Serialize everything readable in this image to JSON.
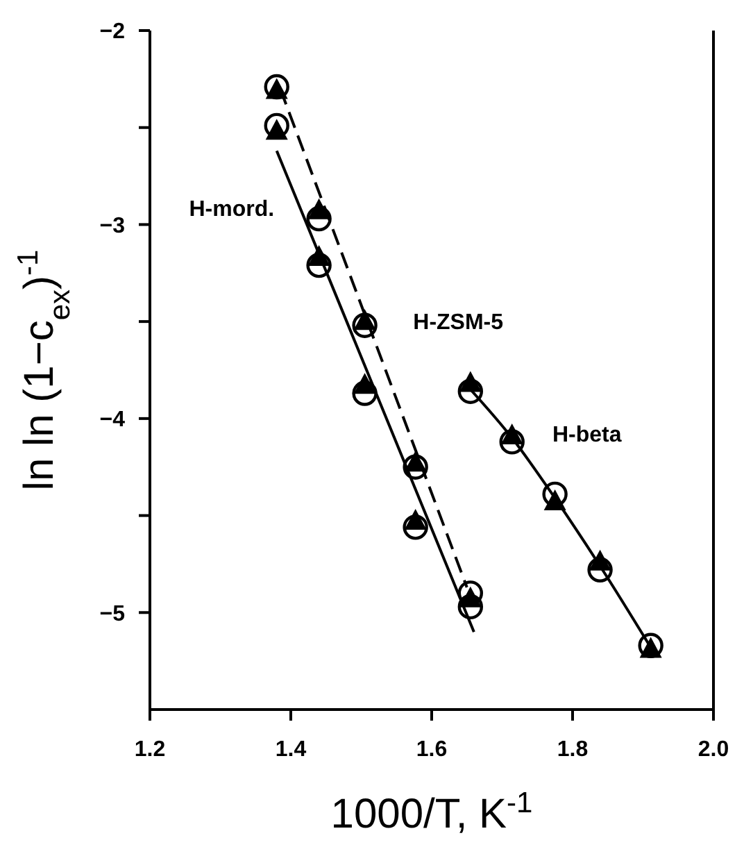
{
  "chart_data": {
    "type": "scatter",
    "xlabel": "1000/T, K$^{-1}$",
    "ylabel": "ln ln (1−c$_{ex}$)$^{-1}$",
    "xlim": [
      1.2,
      2.0
    ],
    "ylim": [
      -5.5,
      -2
    ],
    "xticks": [
      1.2,
      1.4,
      1.6,
      1.8,
      {
        "value": 2.0,
        "label": "2.0"
      }
    ],
    "yticks": [
      {
        "value": -2,
        "label": "−2"
      },
      {
        "value": -2.5,
        "label": null
      },
      {
        "value": -3,
        "label": "−3"
      },
      {
        "value": -3.5,
        "label": null
      },
      {
        "value": -4,
        "label": "−4"
      },
      {
        "value": -4.5,
        "label": null
      },
      {
        "value": -5,
        "label": "−5"
      }
    ],
    "grid": false,
    "legend": false,
    "series": [
      {
        "marker": "circle",
        "color": "#000000",
        "x": [
          1.38,
          1.38,
          1.44,
          1.44,
          1.505,
          1.505,
          1.577,
          1.577,
          1.655,
          1.655,
          1.655,
          1.714,
          1.775,
          1.839,
          1.911
        ],
        "values": [
          -2.29,
          -2.49,
          -2.97,
          -3.21,
          -3.52,
          -3.87,
          -4.25,
          -4.56,
          -4.9,
          -4.97,
          -3.86,
          -4.12,
          -4.39,
          -4.78,
          -5.17
        ]
      },
      {
        "marker": "triangle",
        "color": "#000000",
        "x": [
          1.38,
          1.38,
          1.44,
          1.44,
          1.505,
          1.505,
          1.577,
          1.577,
          1.655,
          1.655,
          1.714,
          1.775,
          1.839,
          1.911
        ],
        "values": [
          -2.31,
          -2.52,
          -2.93,
          -3.17,
          -3.5,
          -3.83,
          -4.23,
          -4.53,
          -4.93,
          -3.82,
          -4.09,
          -4.43,
          -4.74,
          -5.19
        ]
      },
      {
        "type": "line",
        "name": "H-mord.",
        "marker": "none",
        "line_style": "solid",
        "color": "#000000",
        "x": [
          1.38,
          1.66
        ],
        "values": [
          -2.62,
          -5.1
        ]
      },
      {
        "type": "line",
        "name": "H-ZSM-5",
        "marker": "none",
        "line_style": "dashed",
        "color": "#000000",
        "x": [
          1.385,
          1.65
        ],
        "values": [
          -2.3,
          -4.87
        ]
      },
      {
        "type": "line",
        "name": "H-beta",
        "marker": "none",
        "line_style": "solid",
        "color": "#000000",
        "x": [
          1.655,
          1.714,
          1.775,
          1.839,
          1.911
        ],
        "values": [
          -3.85,
          -4.1,
          -4.41,
          -4.76,
          -5.18
        ]
      }
    ]
  }
}
